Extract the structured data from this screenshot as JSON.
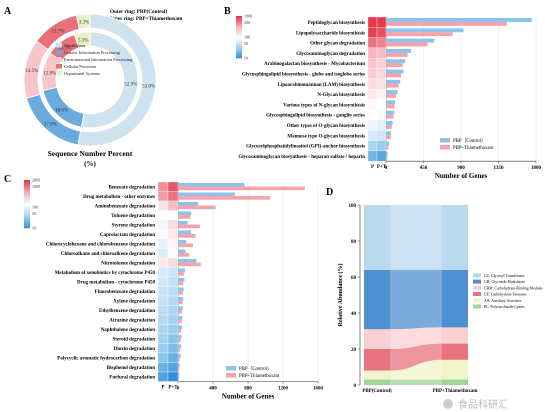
{
  "panels": {
    "a": "A",
    "b": "B",
    "c": "C",
    "d": "D"
  },
  "watermark": "食品科研汇",
  "chart_data": [
    {
      "panel": "A",
      "type": "pie",
      "title": "Sequence Number Percent",
      "title_unit": "(%)",
      "ring_note_outer": "Outer ring: PBP(Control)",
      "ring_note_inner": "Inner ring: PBP+Thiamethoxam",
      "legend": [
        {
          "name": "Metabolism",
          "color": "#cfe2f0"
        },
        {
          "name": "Genetic Information Processing",
          "color": "#6aaadc"
        },
        {
          "name": "Environmental Information Processing",
          "color": "#f7c6ca"
        },
        {
          "name": "Cellular Processes",
          "color": "#e8707a"
        },
        {
          "name": "Organismal Systems",
          "color": "#e8f0c4"
        }
      ],
      "outer": [
        {
          "name": "Metabolism",
          "value": 53.0,
          "label": "53.0%"
        },
        {
          "name": "Genetic Information Processing",
          "value": 17.6,
          "label": "17.6%"
        },
        {
          "name": "Environmental Information Processing",
          "value": 14.5,
          "label": "14.5%"
        },
        {
          "name": "Cellular Processes",
          "value": 11.7,
          "label": "11.7%"
        },
        {
          "name": "Organismal Systems",
          "value": 3.3,
          "label": "3.3%"
        }
      ],
      "inner": [
        {
          "name": "Metabolism",
          "value": 52.9,
          "label": "52.9%"
        },
        {
          "name": "Genetic Information Processing",
          "value": 18.6,
          "label": "18.6%"
        },
        {
          "name": "Environmental Information Processing",
          "value": 12.9,
          "label": "12.9%"
        },
        {
          "name": "Cellular Processes",
          "value": 10.3,
          "label": "10.3%"
        },
        {
          "name": "Organismal Systems",
          "value": 5.3,
          "label": "5.3%"
        }
      ]
    },
    {
      "panel": "B",
      "type": "bar",
      "orientation": "horizontal",
      "xlabel": "Number of Genes",
      "xlim": [
        0,
        1800
      ],
      "xticks": [
        0,
        450,
        900,
        1350,
        1800
      ],
      "heat_columns": [
        "P",
        "P+T"
      ],
      "colorbar": {
        "ticks": [
          1000,
          500,
          100,
          50,
          10
        ],
        "scale": "log"
      },
      "series": [
        {
          "name": "PBP（Control)",
          "color": "#8ec2ec"
        },
        {
          "name": "PBP+Thiamethoxam",
          "color": "#f4a2ab"
        }
      ],
      "categories": [
        "Peptidoglycan biosynthesis",
        "Lipopolysaccharide biosynthesis",
        "Other glycan degradation",
        "Glycosaminoglycan degradation",
        "Arabinogalactan biosynthesis - Mycobacterium",
        "Glycosphingolipid biosynthesis - globo and isoglobo series",
        "Lipoarabinomannan (LAM) biosynthesis",
        "N-Glycan biosynthesis",
        "Various types of N-glycan biosynthesis",
        "Glycosphingolipid biosynthesis - ganglio series",
        "Other types of O-glycan biosynthesis",
        "Mannose type O-glycan biosynthesis",
        "Glycosylphosphatidylinositol (GPI)-anchor biosynthesis",
        "Glycosaminoglycan biosynthesis - heparan sulfate / heparin"
      ],
      "control": [
        1750,
        930,
        580,
        300,
        230,
        210,
        170,
        140,
        110,
        100,
        80,
        60,
        35,
        20
      ],
      "treated": [
        1450,
        800,
        500,
        260,
        200,
        180,
        150,
        120,
        100,
        90,
        70,
        55,
        30,
        15
      ]
    },
    {
      "panel": "C",
      "type": "bar",
      "orientation": "horizontal",
      "xlabel": "Number of Genes",
      "xlim": [
        0,
        1600
      ],
      "xticks": [
        0,
        400,
        800,
        1200,
        1600
      ],
      "heat_columns": [
        "P",
        "P+T"
      ],
      "colorbar": {
        "ticks": [
          2000,
          1000,
          100,
          50,
          10
        ],
        "scale": "log"
      },
      "series": [
        {
          "name": "PBP（Control)",
          "color": "#8ec2ec"
        },
        {
          "name": "PBP+Thiamethoxam",
          "color": "#f4a2ab"
        }
      ],
      "categories": [
        "Benzoate degradation",
        "Drug metabolism - other enzymes",
        "Aminobenzoate degradation",
        "Toluene degradation",
        "Styrene degradation",
        "Caprolactam degradation",
        "Chlorocyclohexane and chlorobenzene degradation",
        "Chloroalkane and chloroalkene degradation",
        "Nitrotoluene degradation",
        "Metabolism of xenobiotics by cytochrome P450",
        "Drug metabolism - cytochrome P450",
        "Fluorobenzoate degradation",
        "Xylene degradation",
        "Ethylbenzene degradation",
        "Atrazine degradation",
        "Naphthalene degradation",
        "Steroid degradation",
        "Dioxin degradation",
        "Polycyclic aromatic hydrocarbon degradation",
        "Bisphenol degradation",
        "Furfural degradation"
      ],
      "control": [
        760,
        650,
        230,
        150,
        110,
        150,
        95,
        85,
        210,
        80,
        75,
        65,
        60,
        55,
        50,
        45,
        40,
        35,
        30,
        20,
        15
      ],
      "treated": [
        1450,
        1050,
        430,
        140,
        250,
        200,
        170,
        130,
        260,
        70,
        60,
        55,
        50,
        45,
        40,
        35,
        30,
        25,
        20,
        15,
        10
      ]
    },
    {
      "panel": "D",
      "type": "area",
      "ylabel": "Relative Abundance (%)",
      "ylim": [
        0,
        100
      ],
      "yticks": [
        0,
        20,
        40,
        60,
        80,
        100
      ],
      "x": [
        "PBP(Control)",
        "PBP+Thiamethoxam"
      ],
      "legend": [
        {
          "name": "GT: Glycosyl Transferases",
          "color": "#b9d9ef"
        },
        {
          "name": "GH: Glycoside Hydrolases",
          "color": "#4f8fcf"
        },
        {
          "name": "CBM: Carbohydrate-Binding Modules",
          "color": "#f8d0d4"
        },
        {
          "name": "CE: Carbohydrate Esterases",
          "color": "#e8737e"
        },
        {
          "name": "AA: Auxiliary Activities",
          "color": "#f0f4c8"
        },
        {
          "name": "PL: Polysaccharide Lyases",
          "color": "#9fd49a"
        }
      ],
      "series": [
        {
          "name": "PL",
          "values": [
            3,
            3
          ]
        },
        {
          "name": "AA",
          "values": [
            5,
            11
          ]
        },
        {
          "name": "CE",
          "values": [
            12,
            9
          ]
        },
        {
          "name": "CBM",
          "values": [
            11,
            9
          ]
        },
        {
          "name": "GH",
          "values": [
            33,
            32
          ]
        },
        {
          "name": "GT",
          "values": [
            36,
            36
          ]
        }
      ]
    }
  ]
}
